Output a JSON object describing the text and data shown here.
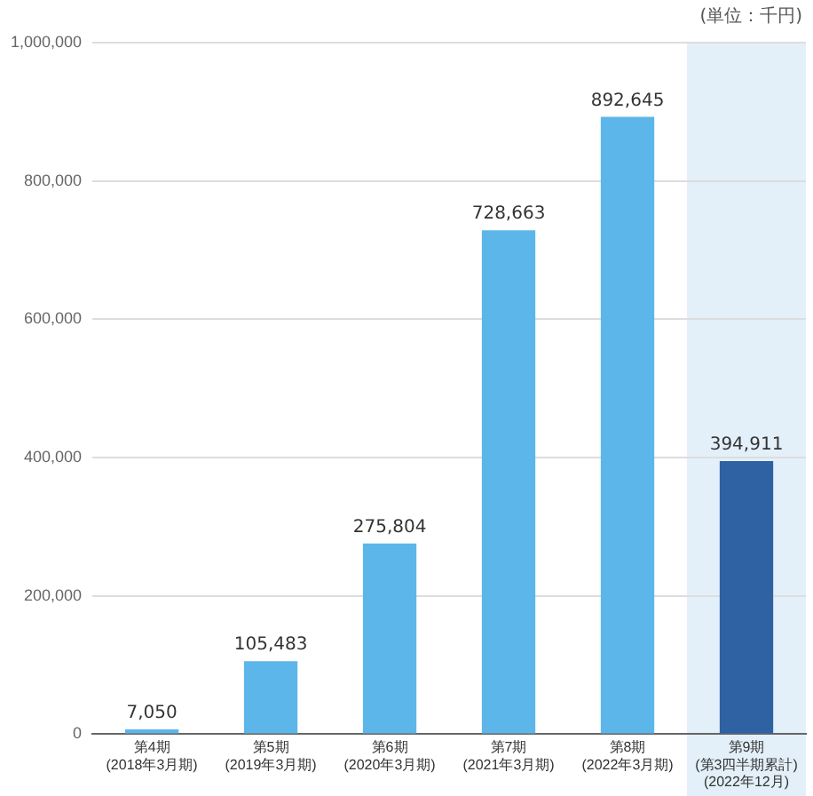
{
  "chart_data": {
    "type": "bar",
    "categories": [
      "第4期\n(2018年3月期)",
      "第5期\n(2019年3月期)",
      "第6期\n(2020年3月期)",
      "第7期\n(2021年3月期)",
      "第8期\n(2022年3月期)",
      "第9期\n(第3四半期累計)\n(2022年12月)"
    ],
    "values": [
      7050,
      105483,
      275804,
      728663,
      892645,
      394911
    ],
    "colors": [
      "#5cb6ea",
      "#5cb6ea",
      "#5cb6ea",
      "#5cb6ea",
      "#5cb6ea",
      "#2e62a3"
    ],
    "value_labels": [
      "7,050",
      "105,483",
      "275,804",
      "728,663",
      "892,645",
      "394,911"
    ],
    "ylim": [
      0,
      1000000
    ],
    "yticks": [
      0,
      {
        "value": 200000,
        "label": "200,000"
      },
      {
        "value": 400000,
        "label": "400,000"
      },
      {
        "value": 600000,
        "label": "600,000"
      },
      {
        "value": 800000,
        "label": "800,000"
      },
      {
        "value": 1000000,
        "label": "1,000,000"
      }
    ],
    "grid": "y",
    "bands": [
      {
        "axis": "x",
        "from": "第9期\n(第3四半期累計)\n(2022年12月)",
        "to": "第9期\n(第3四半期累計)\n(2022年12月)",
        "color": "#e3f0f9"
      }
    ],
    "annotations": [
      "(単位：千円)"
    ]
  }
}
